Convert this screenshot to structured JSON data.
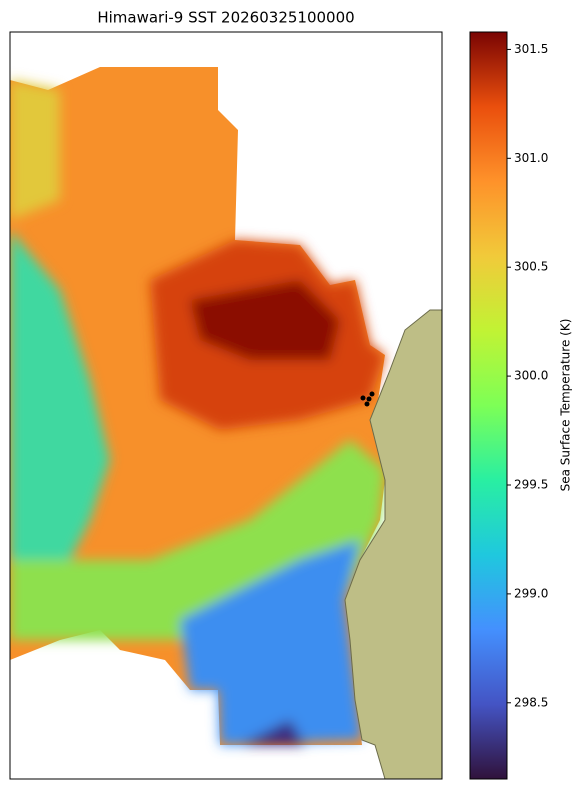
{
  "chart_data": {
    "type": "heatmap",
    "title": "Himawari-9 SST 20260325100000",
    "colorbar_label": "Sea Surface Temperature (K)",
    "clim": [
      298.15,
      301.58
    ],
    "cticks": [
      298.5,
      {
        "value": 299,
        "label": "299.0"
      },
      299.5,
      {
        "value": 300,
        "label": "300.0"
      },
      300.5,
      {
        "value": 301,
        "label": "301.0"
      },
      301.5
    ]
  }
}
